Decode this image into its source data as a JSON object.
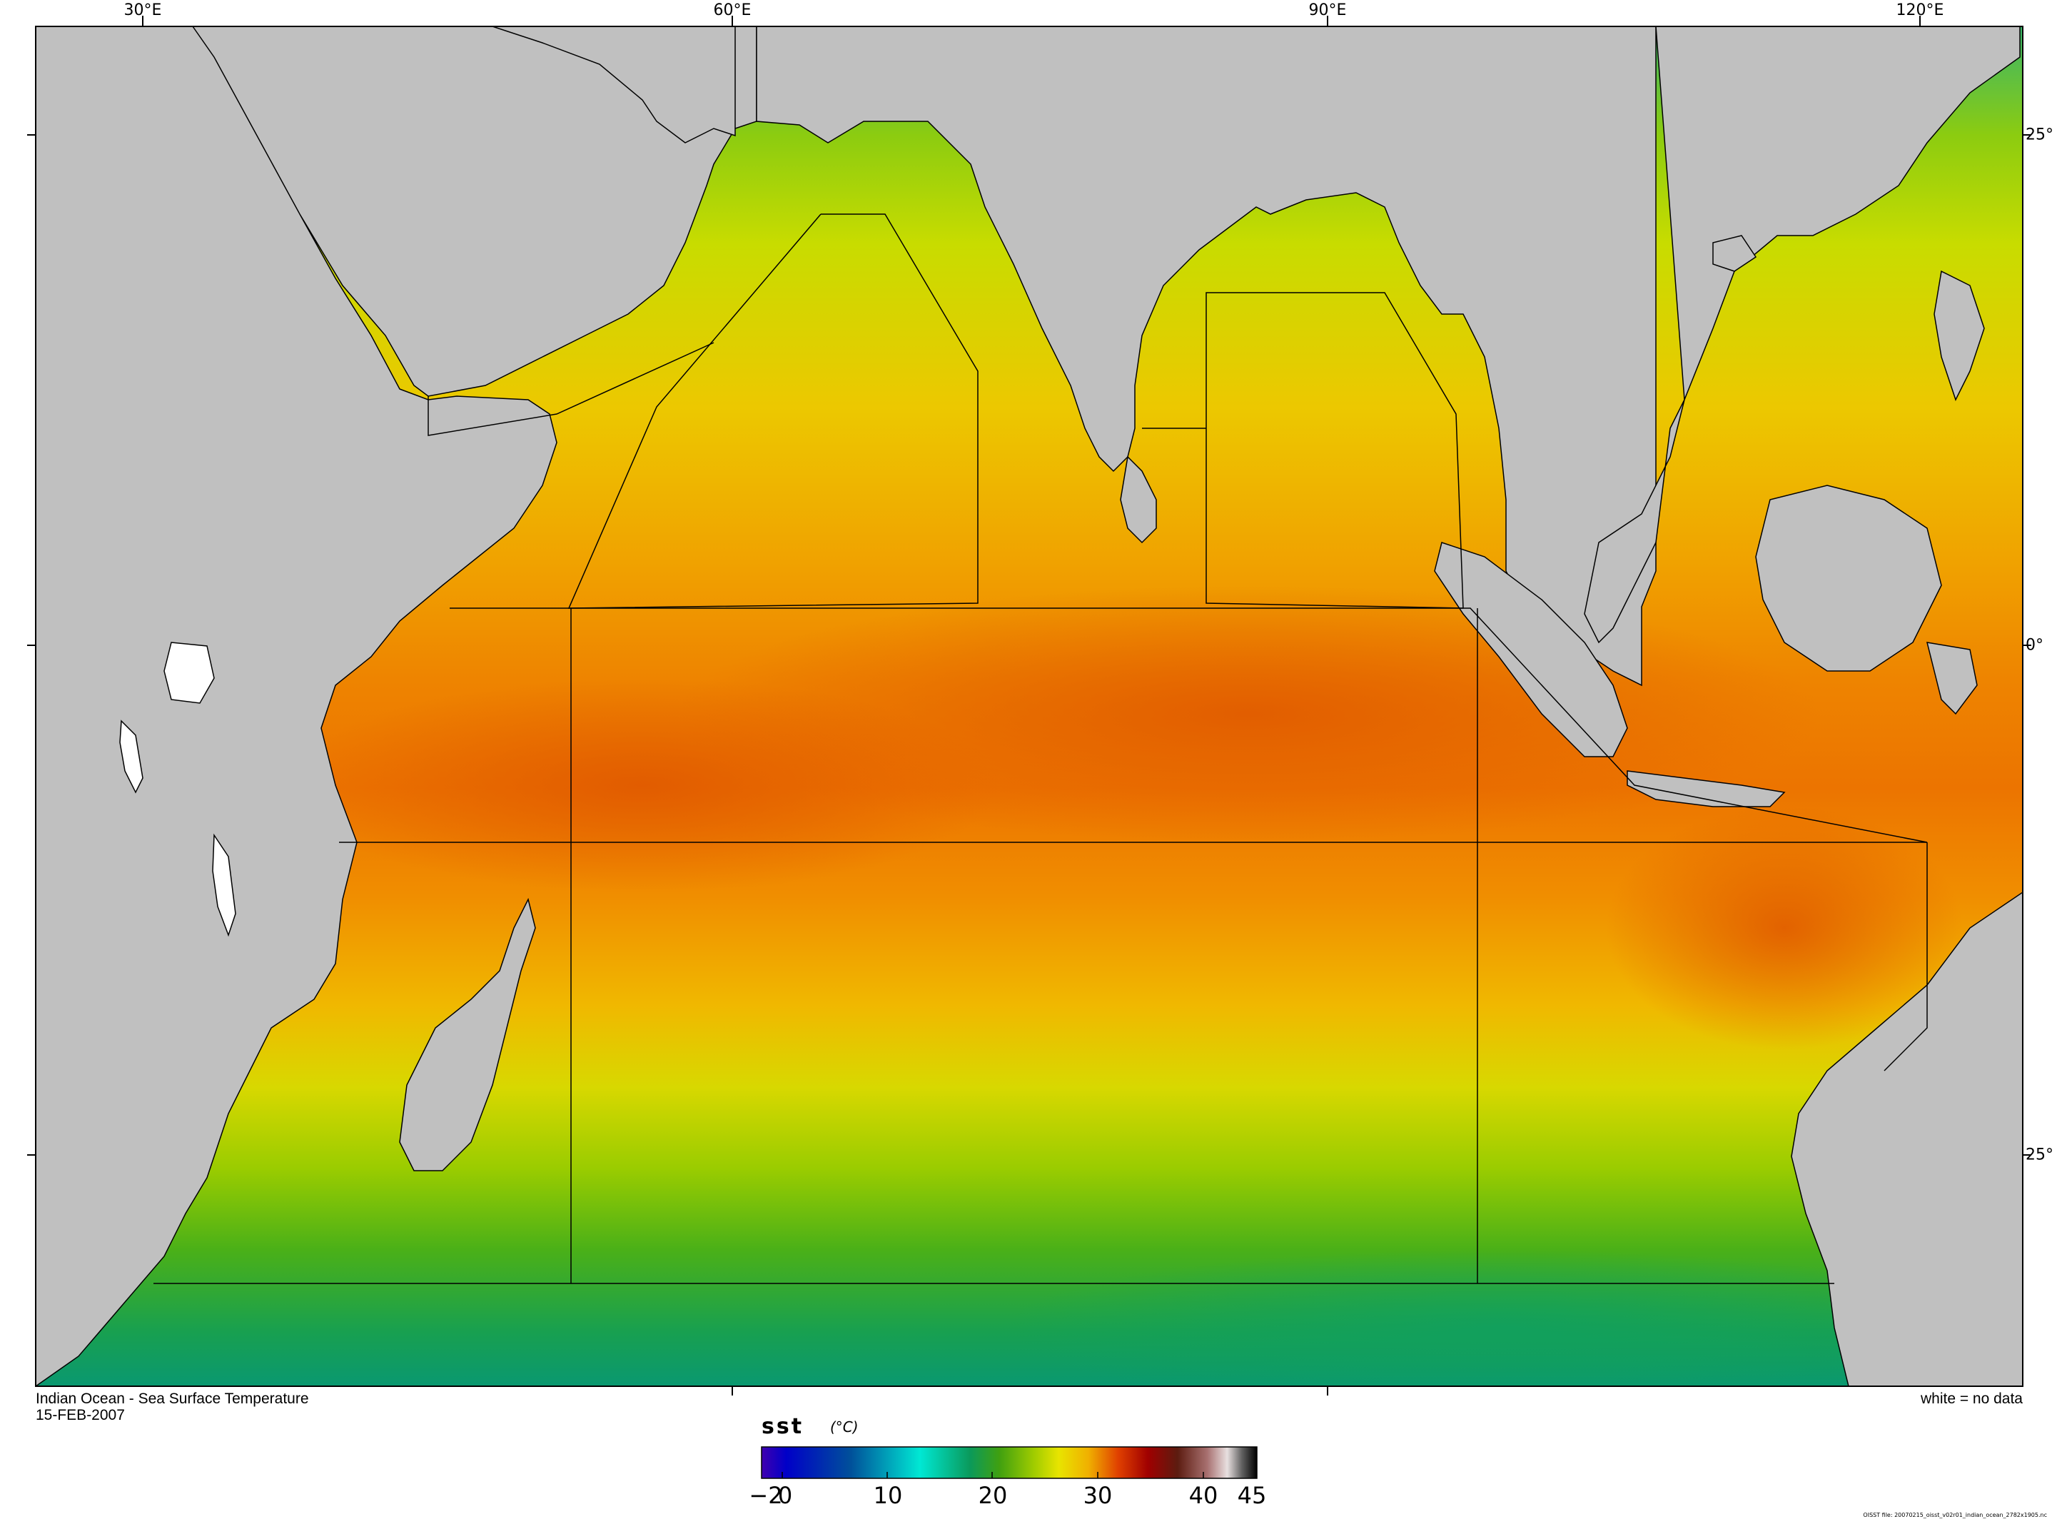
{
  "map": {
    "title": "Indian Ocean - Sea Surface Temperature",
    "date": "15-FEB-2007",
    "no_data_note": "white = no data",
    "source_file": "OISST file: 20070215_oisst_v02r01_indian_ocean_2782x1905.nc",
    "longitude_labels": [
      "30°E",
      "60°E",
      "90°E",
      "120°E"
    ],
    "latitude_labels": [
      "25°",
      "0°",
      "25°"
    ]
  },
  "colorbar": {
    "variable": "sst",
    "units": "(°C)",
    "tick_labels": [
      "−2",
      "0",
      "10",
      "20",
      "30",
      "40",
      "45"
    ],
    "range": [
      -2,
      45
    ],
    "colors": [
      "#3b00a6",
      "#0000c8",
      "#005aa0",
      "#00e8d8",
      "#0a9a5a",
      "#3fa010",
      "#80c800",
      "#e8e000",
      "#f0a000",
      "#e03000",
      "#8a0000",
      "#5a1a10",
      "#b08080",
      "#e0e0e0",
      "#202020"
    ]
  },
  "colors": {
    "land": "#c0c0c0",
    "coast": "#000000",
    "frame": "#000000"
  }
}
